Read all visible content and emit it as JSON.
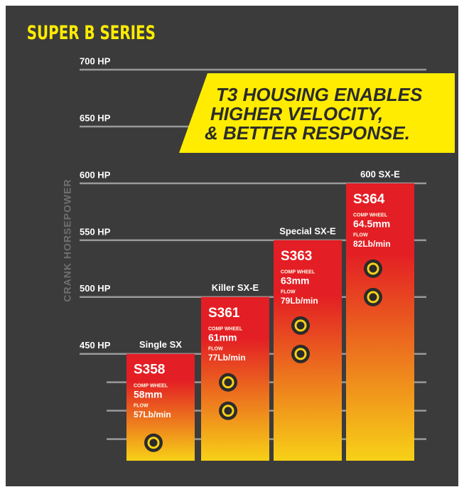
{
  "chart_data": {
    "type": "bar",
    "title": "SUPER B SERIES",
    "y_label": "CRANK HORSEPOWER",
    "annotation": [
      "T3 HOUSING ENABLES",
      "HIGHER VELOCITY,",
      "& BETTER RESPONSE."
    ],
    "categories": [
      "Single SX",
      "Killer SX-E",
      "Special SX-E",
      "600 SX-E"
    ],
    "values": [
      450,
      500,
      550,
      600
    ],
    "models": [
      "S358",
      "S361",
      "S363",
      "S364"
    ],
    "wheel_label": "COMP WHEEL",
    "wheel": [
      "58mm",
      "61mm",
      "63mm",
      "64.5mm"
    ],
    "flow_label": "FLOW",
    "flow": [
      "57Lb/min",
      "77Lb/min",
      "79Lb/min",
      "82Lb/min"
    ],
    "color": "#e31e24",
    "color_bottom": "#f7d117",
    "ylim": [
      356,
      700
    ],
    "yticks": [
      {
        "value": 700,
        "label": "700 HP"
      },
      {
        "value": 650,
        "label": "650 HP"
      },
      {
        "value": 600,
        "label": "600 HP"
      },
      {
        "value": 550,
        "label": "550 HP"
      },
      {
        "value": 500,
        "label": "500 HP"
      },
      {
        "value": 450,
        "label": "450 HP"
      }
    ],
    "minor_yticks": [
      425,
      400,
      375
    ],
    "grid": true
  }
}
